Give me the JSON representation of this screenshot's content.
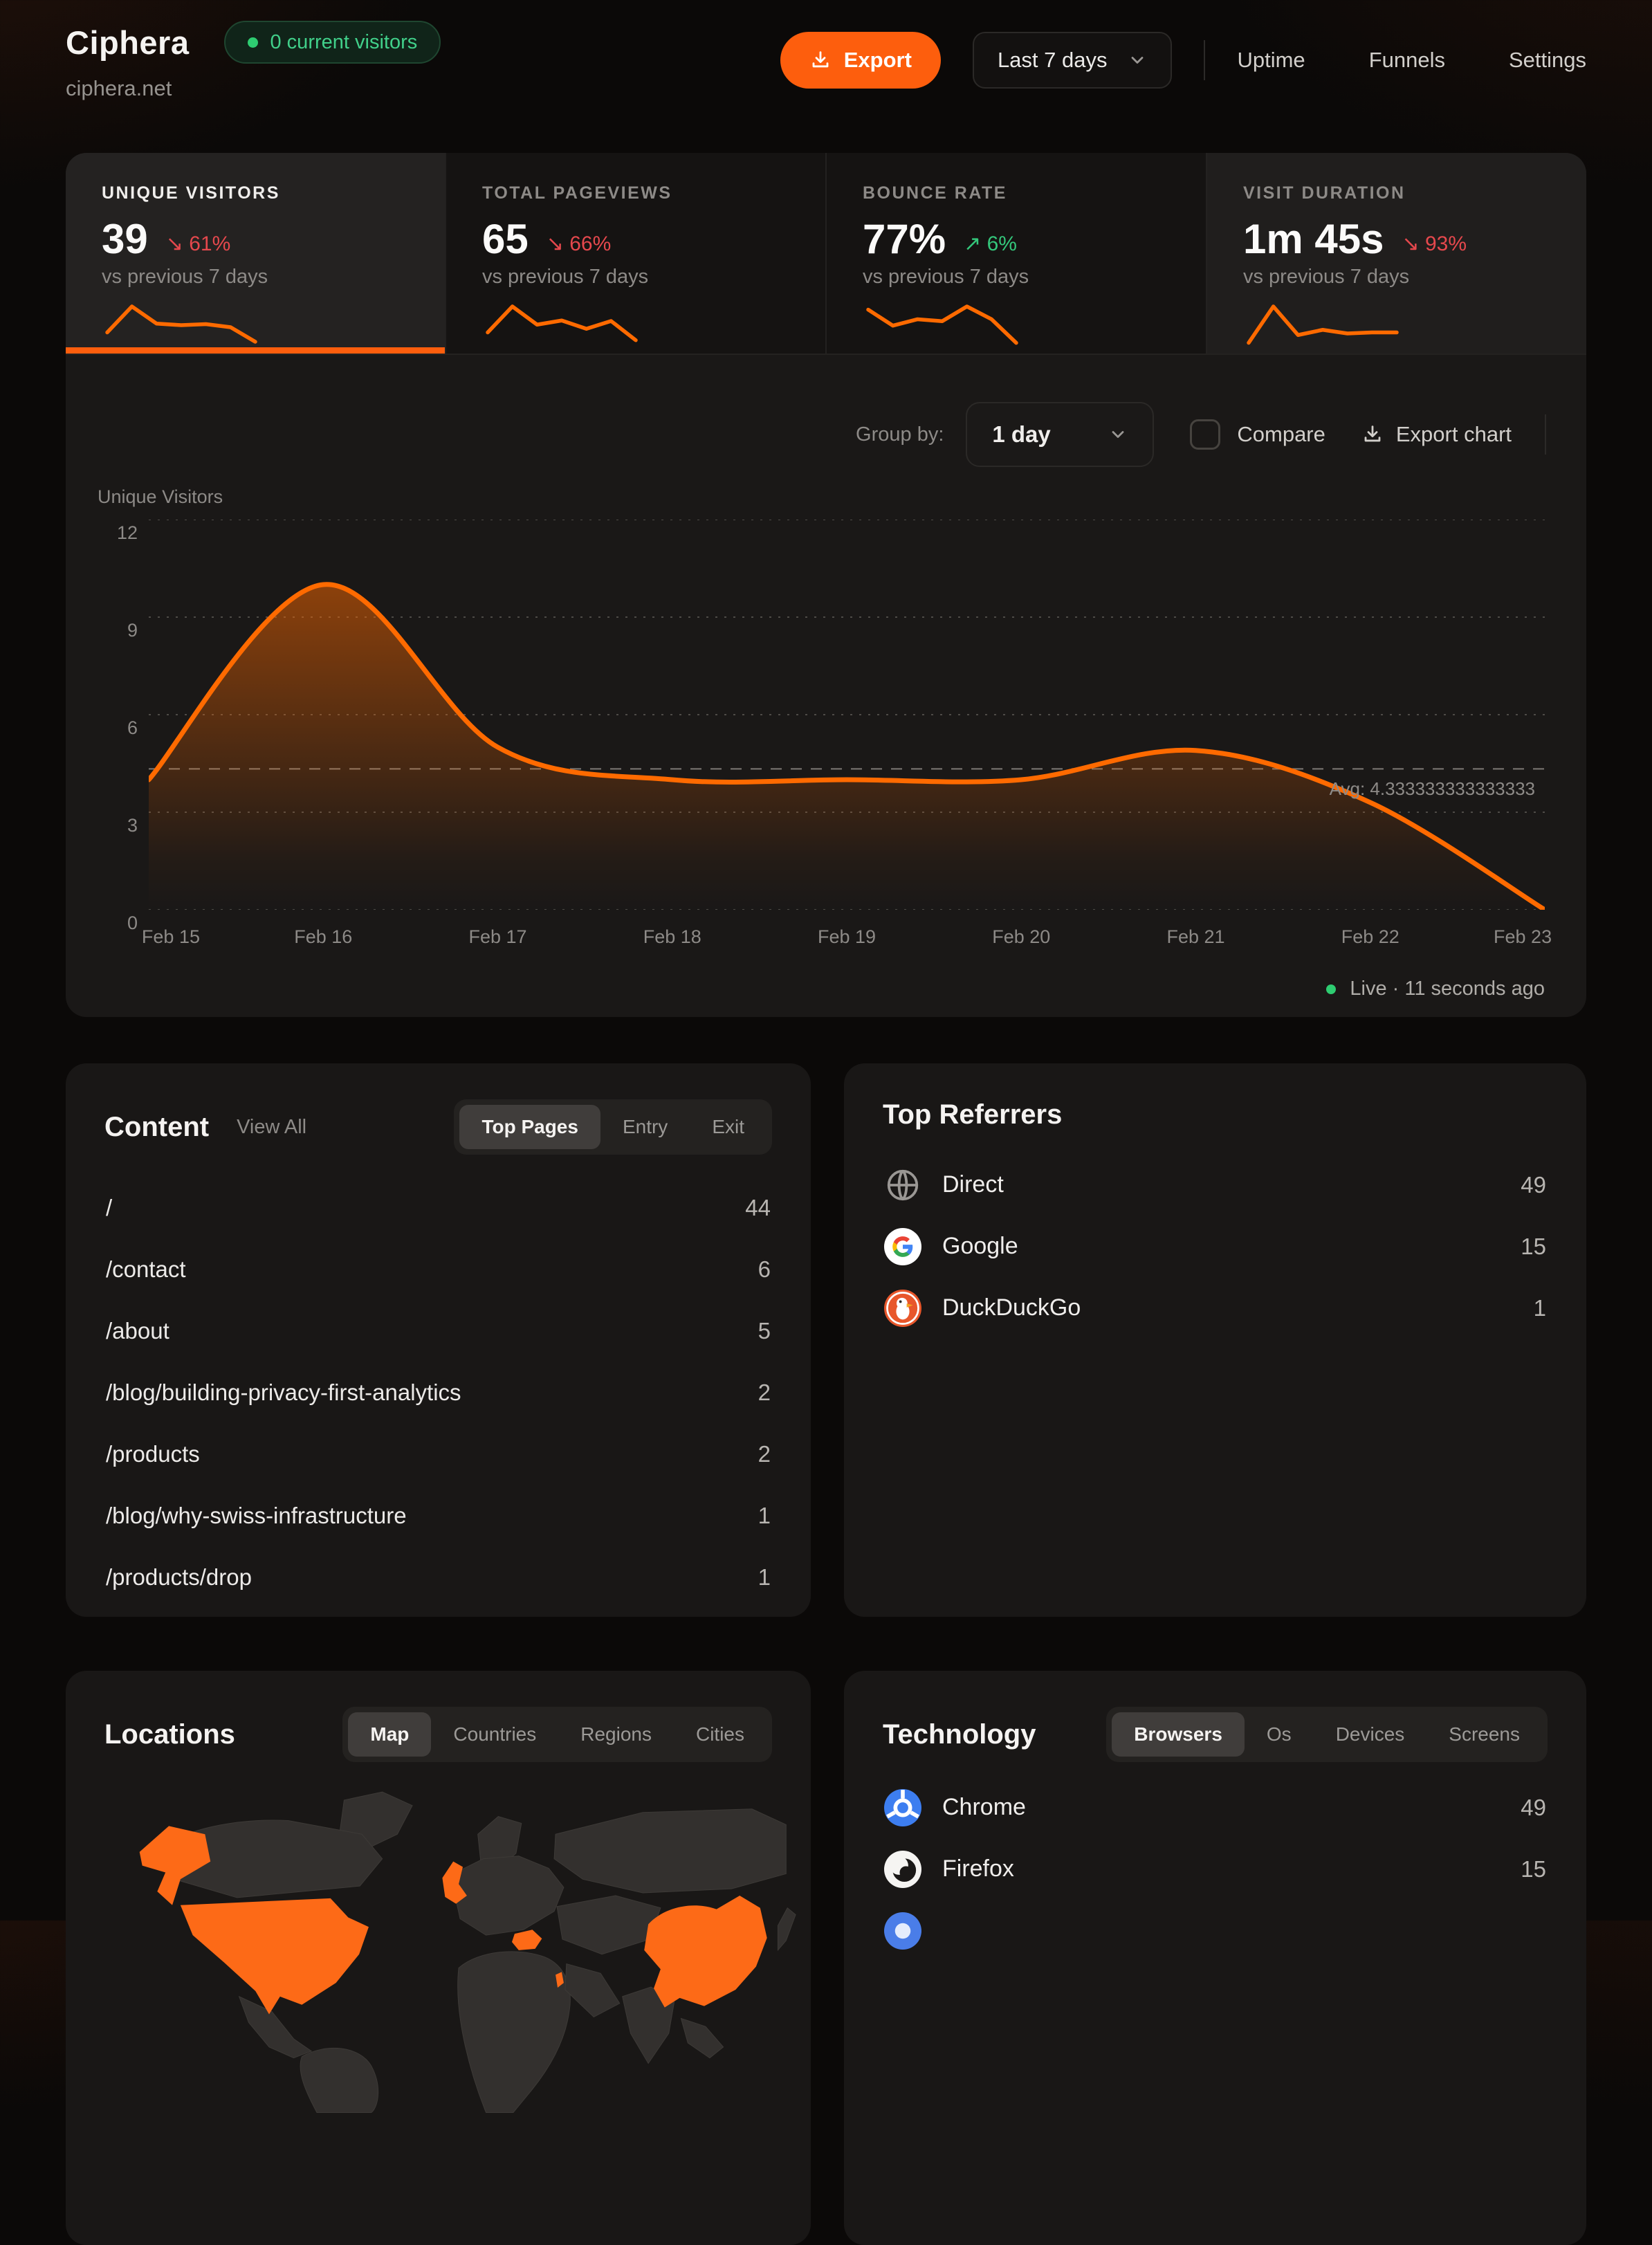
{
  "brand": {
    "name": "Ciphera",
    "domain": "ciphera.net",
    "visitors_badge": "0 current visitors"
  },
  "header": {
    "export_label": "Export",
    "date_range": "Last 7 days",
    "nav_uptime": "Uptime",
    "nav_funnels": "Funnels",
    "nav_settings": "Settings"
  },
  "stats": [
    {
      "label": "UNIQUE VISITORS",
      "value": "39",
      "arrow": "↘",
      "delta": "61%",
      "trend": "down",
      "vs": "vs previous 7 days",
      "spark": [
        3,
        8,
        4.7,
        4.4,
        4.6,
        4,
        1.2
      ]
    },
    {
      "label": "TOTAL PAGEVIEWS",
      "value": "65",
      "arrow": "↘",
      "delta": "66%",
      "trend": "down",
      "vs": "vs previous 7 days",
      "spark": [
        3,
        8,
        4.5,
        5.3,
        3.7,
        5.2,
        1.5
      ]
    },
    {
      "label": "BOUNCE RATE",
      "value": "77%",
      "arrow": "↗",
      "delta": "6%",
      "trend": "up",
      "vs": "vs previous 7 days",
      "spark": [
        6,
        3.5,
        4.5,
        4.2,
        6.5,
        4.5,
        0.8
      ]
    },
    {
      "label": "VISIT DURATION",
      "value": "1m 45s",
      "arrow": "↘",
      "delta": "93%",
      "trend": "down",
      "vs": "vs previous 7 days",
      "spark": [
        1,
        8,
        2.5,
        3.5,
        2.8,
        3,
        3
      ]
    }
  ],
  "chart_controls": {
    "group_by_label": "Group by:",
    "group_by_value": "1 day",
    "compare_label": "Compare",
    "export_chart_label": "Export chart"
  },
  "chart_data": {
    "type": "area",
    "title": "Unique Visitors",
    "x": [
      "Feb 15",
      "Feb 16",
      "Feb 17",
      "Feb 18",
      "Feb 19",
      "Feb 20",
      "Feb 21",
      "Feb 22",
      "Feb 23"
    ],
    "values": [
      4,
      10,
      5,
      4,
      4,
      4,
      4.9,
      3.3,
      0
    ],
    "ylim": [
      0,
      12
    ],
    "yticks": [
      0,
      3,
      6,
      9,
      12
    ],
    "avg": 4.333333333333333,
    "avg_label": "Avg: 4.333333333333333",
    "line_color": "#ff6a00",
    "grid": "dotted-horizontal",
    "legend": "none"
  },
  "live_status": "Live · 11 seconds ago",
  "content_card": {
    "title": "Content",
    "view_all": "View All",
    "tabs": [
      "Top Pages",
      "Entry",
      "Exit"
    ],
    "active_tab": "Top Pages",
    "rows": [
      {
        "path": "/",
        "count": "44"
      },
      {
        "path": "/contact",
        "count": "6"
      },
      {
        "path": "/about",
        "count": "5"
      },
      {
        "path": "/blog/building-privacy-first-analytics",
        "count": "2"
      },
      {
        "path": "/products",
        "count": "2"
      },
      {
        "path": "/blog/why-swiss-infrastructure",
        "count": "1"
      },
      {
        "path": "/products/drop",
        "count": "1"
      }
    ]
  },
  "referrers_card": {
    "title": "Top Referrers",
    "rows": [
      {
        "label": "Direct",
        "count": "49"
      },
      {
        "label": "Google",
        "count": "15"
      },
      {
        "label": "DuckDuckGo",
        "count": "1"
      }
    ]
  },
  "locations_card": {
    "title": "Locations",
    "tabs": [
      "Map",
      "Countries",
      "Regions",
      "Cities"
    ],
    "active_tab": "Map",
    "highlighted_countries": [
      "United States",
      "Alaska (US)",
      "United Kingdom",
      "Hungary",
      "Israel",
      "China"
    ]
  },
  "technology_card": {
    "title": "Technology",
    "tabs": [
      "Browsers",
      "Os",
      "Devices",
      "Screens"
    ],
    "active_tab": "Browsers",
    "rows": [
      {
        "label": "Chrome",
        "count": "49"
      },
      {
        "label": "Firefox",
        "count": "15"
      }
    ]
  },
  "colors": {
    "accent": "#fd5e0d",
    "chart_line": "#ff6a00",
    "positive": "#34c77b",
    "negative": "#e5484d",
    "live_dot": "#2ecc71",
    "map_highlight": "#fd6a17",
    "map_land": "#33302e"
  }
}
